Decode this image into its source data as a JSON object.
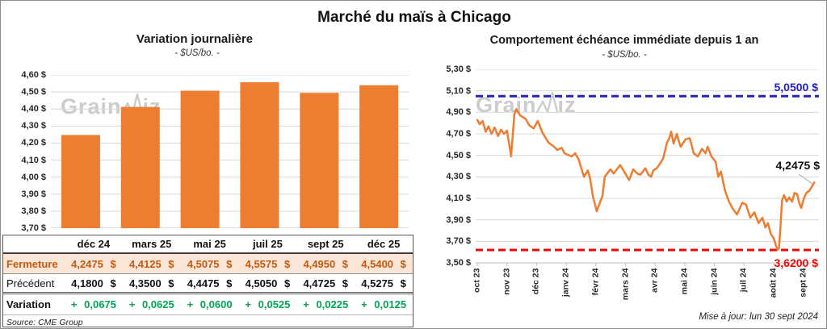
{
  "title": "Marché du maïs à Chicago",
  "watermark": {
    "part1": "Grain",
    "part2": "iz"
  },
  "footer": {
    "update_note": "Mise à jour: lun 30 sept 2024"
  },
  "table": {
    "col_headers": [
      "déc 24",
      "mars 25",
      "mai 25",
      "juil 25",
      "sept 25",
      "déc 25"
    ],
    "rows": [
      {
        "label": "Fermeture",
        "values": [
          "4,2475 $",
          "4,4125 $",
          "4,5075 $",
          "4,5575 $",
          "4,4950 $",
          "4,5400 $"
        ]
      },
      {
        "label": "Précédent",
        "values": [
          "4,1800 $",
          "4,3500 $",
          "4,4475 $",
          "4,5050 $",
          "4,4725 $",
          "4,5275 $"
        ]
      },
      {
        "label": "Variation",
        "values": [
          "+ 0,0675",
          "+ 0,0625",
          "+ 0,0600",
          "+ 0,0525",
          "+ 0,0225",
          "+ 0,0125"
        ]
      }
    ],
    "source": "Source: CME Group"
  },
  "colors": {
    "bar_orange": "#ED7D31",
    "line_orange": "#ED7D31",
    "fermeture_text": "#C55A11",
    "fermeture_bg": "#FBE5D6",
    "variation_green": "#00A651",
    "ref_blue": "#2222CC",
    "ref_red": "#FF0000",
    "gridline": "#D9D9D9",
    "axis": "#BFBFBF"
  },
  "chart_data": [
    {
      "type": "bar",
      "title": "Variation  journalière",
      "subtitle": "- $US/bo. -",
      "categories": [
        "déc 24",
        "mars 25",
        "mai 25",
        "juil 25",
        "sept 25",
        "déc 25"
      ],
      "values": [
        4.2475,
        4.4125,
        4.5075,
        4.5575,
        4.495,
        4.54
      ],
      "ylim": [
        3.7,
        4.6
      ],
      "ytick_step": 0.1,
      "ytick_labels": [
        "4,60 $",
        "4,50 $",
        "4,40 $",
        "4,30 $",
        "4,20 $",
        "4,10 $",
        "4,00 $",
        "3,90 $",
        "3,80 $",
        "3,70 $"
      ],
      "grid": true,
      "xlabel": "",
      "ylabel": ""
    },
    {
      "type": "line",
      "title": "Comportement  échéance  immédiate  depuis 1 an",
      "subtitle": "- $US/bo. -",
      "x_labels": [
        "oct 23",
        "nov 23",
        "déc 23",
        "janv 24",
        "févr 24",
        "mars 24",
        "avr 24",
        "mai 24",
        "juin 24",
        "juil 24",
        "août 24",
        "sept 24"
      ],
      "x_unit": "months since oct 2023",
      "ylim": [
        3.5,
        5.3
      ],
      "ytick_step": 0.2,
      "ytick_labels": [
        "5,30 $",
        "5,10 $",
        "4,90 $",
        "4,70 $",
        "4,50 $",
        "4,30 $",
        "4,10 $",
        "3,90 $",
        "3,70 $",
        "3,50 $"
      ],
      "grid": true,
      "ref_lines": [
        {
          "value": 5.05,
          "label": "5,0500 $",
          "color": "#2222CC",
          "style": "dashed"
        },
        {
          "value": 3.62,
          "label": "3,6200 $",
          "color": "#FF0000",
          "style": "dashed"
        }
      ],
      "annotation": {
        "label": "4,2475 $",
        "value": 4.2475
      },
      "series": [
        {
          "name": "échéance immédiate",
          "color": "#ED7D31",
          "points": [
            [
              0,
              4.83
            ],
            [
              0.08,
              4.79
            ],
            [
              0.18,
              4.82
            ],
            [
              0.28,
              4.72
            ],
            [
              0.38,
              4.77
            ],
            [
              0.48,
              4.7
            ],
            [
              0.58,
              4.76
            ],
            [
              0.7,
              4.68
            ],
            [
              0.8,
              4.74
            ],
            [
              0.9,
              4.7
            ],
            [
              1.0,
              4.73
            ],
            [
              1.08,
              4.6
            ],
            [
              1.14,
              4.49
            ],
            [
              1.25,
              4.88
            ],
            [
              1.31,
              4.93
            ],
            [
              1.45,
              4.87
            ],
            [
              1.63,
              4.84
            ],
            [
              1.75,
              4.78
            ],
            [
              1.9,
              4.75
            ],
            [
              2.04,
              4.82
            ],
            [
              2.2,
              4.71
            ],
            [
              2.4,
              4.62
            ],
            [
              2.59,
              4.58
            ],
            [
              2.7,
              4.55
            ],
            [
              2.85,
              4.57
            ],
            [
              2.94,
              4.52
            ],
            [
              3.1,
              4.5
            ],
            [
              3.19,
              4.49
            ],
            [
              3.3,
              4.52
            ],
            [
              3.41,
              4.47
            ],
            [
              3.6,
              4.3
            ],
            [
              3.73,
              4.36
            ],
            [
              3.81,
              4.28
            ],
            [
              3.9,
              4.12
            ],
            [
              4.03,
              3.98
            ],
            [
              4.15,
              4.07
            ],
            [
              4.22,
              4.12
            ],
            [
              4.3,
              4.3
            ],
            [
              4.49,
              4.37
            ],
            [
              4.6,
              4.33
            ],
            [
              4.68,
              4.36
            ],
            [
              4.82,
              4.41
            ],
            [
              4.95,
              4.35
            ],
            [
              5.12,
              4.27
            ],
            [
              5.26,
              4.37
            ],
            [
              5.4,
              4.33
            ],
            [
              5.5,
              4.32
            ],
            [
              5.67,
              4.38
            ],
            [
              5.77,
              4.32
            ],
            [
              5.86,
              4.3
            ],
            [
              5.94,
              4.36
            ],
            [
              6.05,
              4.38
            ],
            [
              6.13,
              4.41
            ],
            [
              6.27,
              4.47
            ],
            [
              6.4,
              4.62
            ],
            [
              6.48,
              4.66
            ],
            [
              6.54,
              4.72
            ],
            [
              6.62,
              4.61
            ],
            [
              6.73,
              4.7
            ],
            [
              6.8,
              4.63
            ],
            [
              6.86,
              4.58
            ],
            [
              7.03,
              4.65
            ],
            [
              7.17,
              4.66
            ],
            [
              7.3,
              4.52
            ],
            [
              7.44,
              4.49
            ],
            [
              7.58,
              4.56
            ],
            [
              7.7,
              4.52
            ],
            [
              7.77,
              4.58
            ],
            [
              7.9,
              4.49
            ],
            [
              8.04,
              4.44
            ],
            [
              8.13,
              4.3
            ],
            [
              8.22,
              4.35
            ],
            [
              8.36,
              4.17
            ],
            [
              8.49,
              4.07
            ],
            [
              8.63,
              4.0
            ],
            [
              8.76,
              3.95
            ],
            [
              8.94,
              4.06
            ],
            [
              9.07,
              4.04
            ],
            [
              9.21,
              3.92
            ],
            [
              9.35,
              3.97
            ],
            [
              9.49,
              3.87
            ],
            [
              9.62,
              3.92
            ],
            [
              9.72,
              3.83
            ],
            [
              9.81,
              3.87
            ],
            [
              9.9,
              3.77
            ],
            [
              10.0,
              3.73
            ],
            [
              10.08,
              3.66
            ],
            [
              10.13,
              3.62
            ],
            [
              10.18,
              3.64
            ],
            [
              10.22,
              3.8
            ],
            [
              10.28,
              4.08
            ],
            [
              10.35,
              4.13
            ],
            [
              10.44,
              4.07
            ],
            [
              10.52,
              4.11
            ],
            [
              10.62,
              4.07
            ],
            [
              10.7,
              4.15
            ],
            [
              10.79,
              4.14
            ],
            [
              10.87,
              4.05
            ],
            [
              10.93,
              4.01
            ],
            [
              11.02,
              4.1
            ],
            [
              11.1,
              4.15
            ],
            [
              11.2,
              4.17
            ],
            [
              11.29,
              4.21
            ],
            [
              11.37,
              4.2475
            ]
          ]
        }
      ]
    }
  ]
}
